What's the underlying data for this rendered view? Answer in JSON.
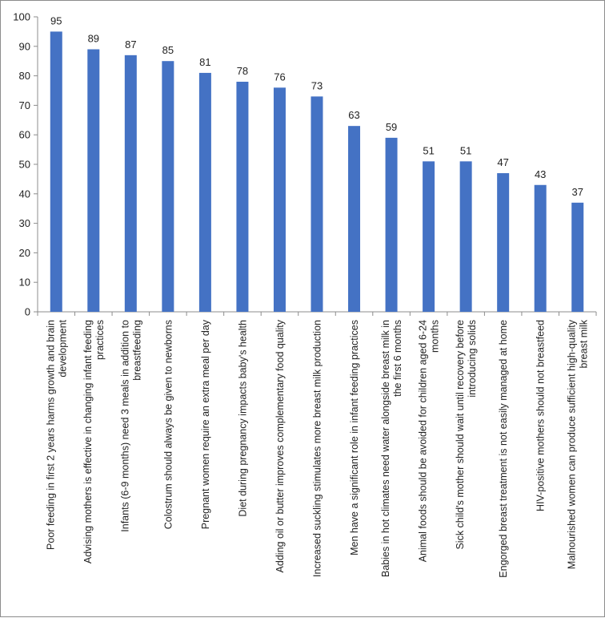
{
  "chart_data": {
    "type": "bar",
    "title": "",
    "xlabel": "",
    "ylabel": "",
    "ylim": [
      0,
      100
    ],
    "yticks": [
      "0",
      "10",
      "20",
      "30",
      "40",
      "50",
      "60",
      "70",
      "80",
      "90",
      "100"
    ],
    "grid": false,
    "bar_color": "#4472C4",
    "categories": [
      [
        "Poor feeding in first 2 years harms growth and brain",
        "development"
      ],
      [
        "Advising mothers is effective in changing infant feeding",
        "practices"
      ],
      [
        "Infants (6-9 months) need 3 meals in addition to",
        "breastfeeding"
      ],
      [
        "Colostrum should always be given to newborns"
      ],
      [
        "Pregnant women require an extra meal per day"
      ],
      [
        "Diet during pregnancy impacts baby's health"
      ],
      [
        "Adding oil or butter improves complementary food quality"
      ],
      [
        "Increased suckling stimulates more breast milk production"
      ],
      [
        "Men have a significant role in infant feeding practices"
      ],
      [
        "Babies in hot climates need water alongside breast milk in",
        "the first 6 months"
      ],
      [
        "Animal foods should be avoided for children aged 6-24",
        "months"
      ],
      [
        "Sick child's mother should wait until recovery before",
        "introducing solids"
      ],
      [
        "Engorged breast treatment is not easily managed at home"
      ],
      [
        "HIV-positive mothers should not breastfeed"
      ],
      [
        "Malnourished women can produce sufficient high-quality",
        "breast milk"
      ]
    ],
    "values": [
      95,
      89,
      87,
      85,
      81,
      78,
      76,
      73,
      63,
      59,
      51,
      51,
      47,
      43,
      37
    ]
  }
}
